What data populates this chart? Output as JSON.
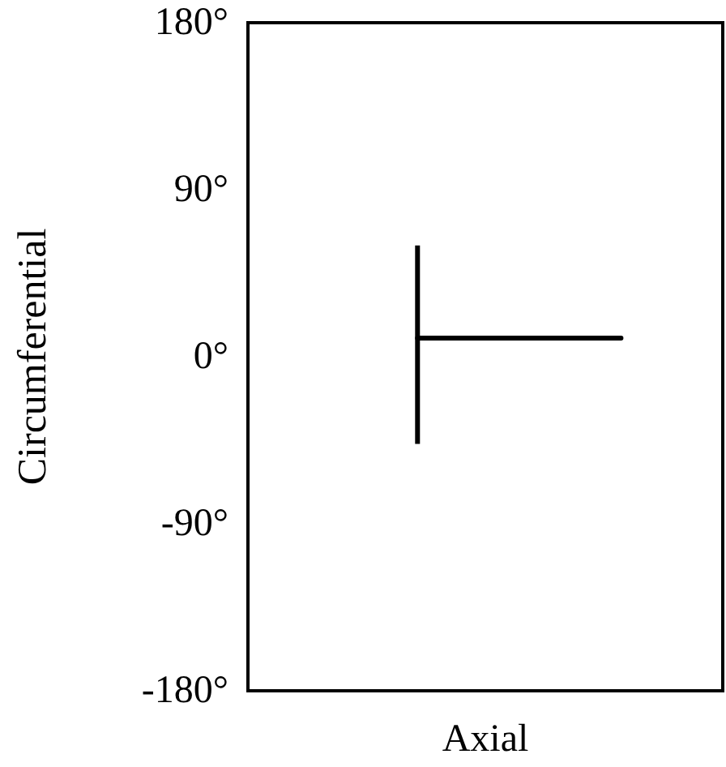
{
  "chart_data": {
    "type": "line",
    "xlabel": "Axial",
    "ylabel": "Circumferential",
    "categories": [
      null,
      null,
      null,
      null,
      null,
      null,
      null
    ],
    "ylim": [
      -180,
      180
    ],
    "yticks": [
      {
        "value": -180,
        "label": "-180°"
      },
      {
        "value": -90,
        "label": "-90°"
      },
      {
        "value": 0,
        "label": "0°"
      },
      {
        "value": 90,
        "label": "90°"
      },
      {
        "value": 180,
        "label": "180°"
      }
    ],
    "tick_labels": "y",
    "grid": false,
    "marker": "none",
    "line_style": "solid",
    "series": [
      {
        "color": "#000000",
        "values": [
          null,
          null,
          10,
          10,
          10,
          10,
          null
        ],
        "errors": [
          null,
          null,
          [
            -47,
            60
          ],
          null,
          null,
          null,
          null
        ]
      }
    ]
  }
}
